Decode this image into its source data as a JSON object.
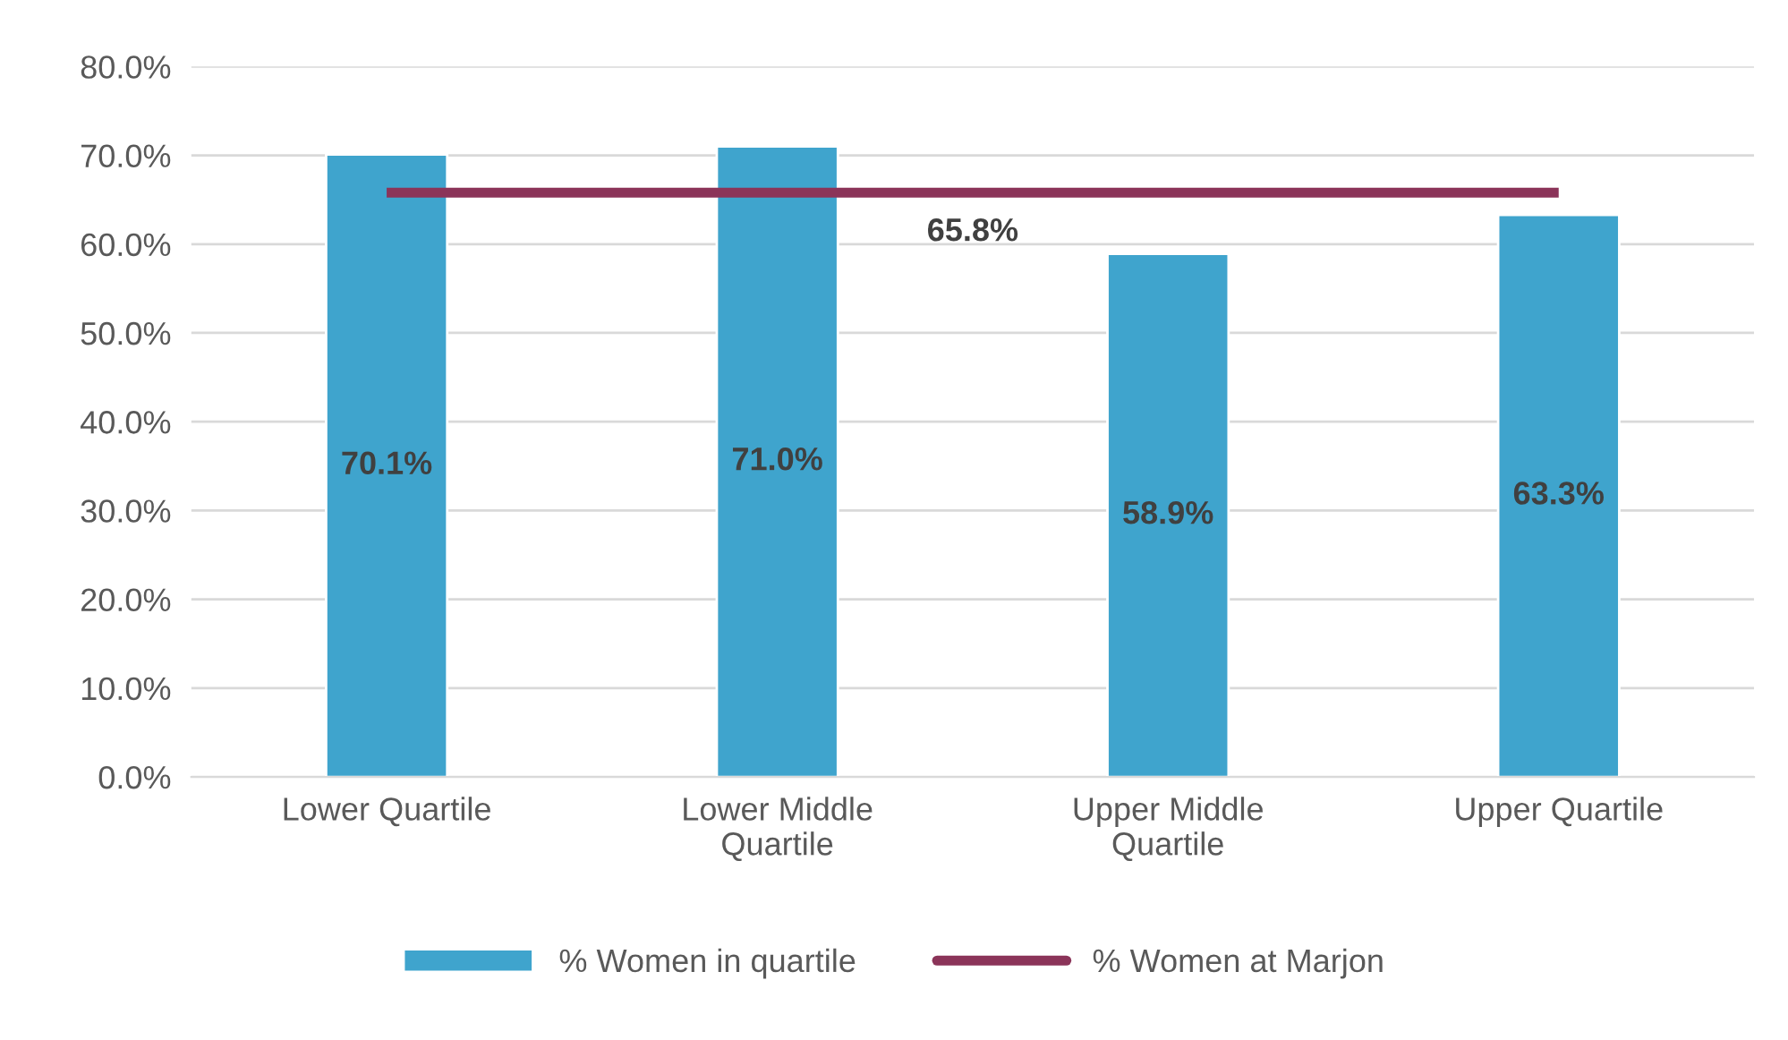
{
  "chart_data": {
    "type": "bar",
    "categories": [
      "Lower Quartile",
      "Lower Middle\nQuartile",
      "Upper Middle\nQuartile",
      "Upper Quartile"
    ],
    "series": [
      {
        "name": "% Women in quartile",
        "color": "#3fa4cd",
        "values": [
          70.1,
          71.0,
          58.9,
          63.3
        ],
        "value_labels": [
          "70.1%",
          "71.0%",
          "58.9%",
          "63.3%"
        ]
      },
      {
        "name": "% Women at Marjon",
        "type": "line",
        "color": "#8b3459",
        "values": [
          65.8,
          65.8,
          65.8,
          65.8
        ]
      }
    ],
    "annotations": [
      {
        "text": "65.8%",
        "y": 65.8
      }
    ],
    "ylim": [
      0,
      80
    ],
    "yticks": [
      {
        "value": 0,
        "label": "0.0%"
      },
      {
        "value": 10,
        "label": "10.0%"
      },
      {
        "value": 20,
        "label": "20.0%"
      },
      {
        "value": 30,
        "label": "30.0%"
      },
      {
        "value": 40,
        "label": "40.0%"
      },
      {
        "value": 50,
        "label": "50.0%"
      },
      {
        "value": 60,
        "label": "60.0%"
      },
      {
        "value": 70,
        "label": "70.0%"
      },
      {
        "value": 80,
        "label": "80.0%"
      }
    ],
    "grid": "y",
    "legend": "bottom"
  }
}
